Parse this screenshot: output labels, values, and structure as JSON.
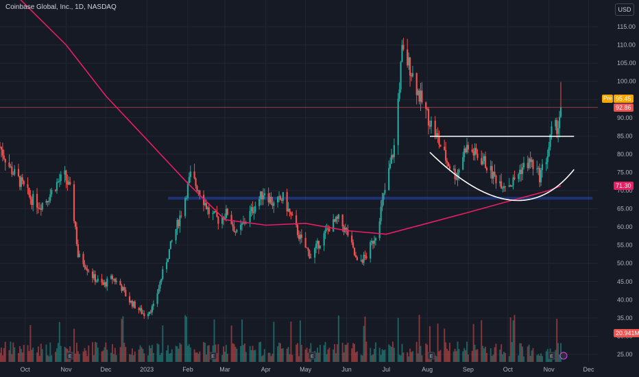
{
  "header": {
    "title": "Coinbase Global, Inc., 1D, NASDAQ",
    "currency": "USD"
  },
  "price_tags": {
    "pre_label": "Pre",
    "pre_value": "95.45",
    "last_value": "92.86",
    "ma_value": "71.30",
    "volume_value": "20.941M"
  },
  "colors": {
    "background": "#161a25",
    "up": "#26a69a",
    "down": "#ef5350",
    "ma": "#e91e63",
    "zone": "#2962ff",
    "pre": "#f7a600"
  },
  "icons": [
    "earnings-icon",
    "dividend-icon"
  ],
  "chart_data": {
    "type": "candlestick",
    "title": "Coinbase Global, Inc., 1D, NASDAQ",
    "y_ticks": [
      "115.00",
      "110.00",
      "105.00",
      "100.00",
      "95.00",
      "90.00",
      "85.00",
      "80.00",
      "75.00",
      "70.00",
      "65.00",
      "60.00",
      "55.00",
      "50.00",
      "45.00",
      "40.00",
      "35.00",
      "30.00",
      "25.00"
    ],
    "x_ticks": [
      "Oct",
      "Nov",
      "Dec",
      "2023",
      "Feb",
      "Mar",
      "Apr",
      "May",
      "Jun",
      "Jul",
      "Aug",
      "Sep",
      "Oct",
      "Nov",
      "Dec"
    ],
    "ylim": [
      22,
      119
    ],
    "x_range": [
      "2022-09-12",
      "2023-12-08"
    ],
    "grid": true,
    "last_price": 92.86,
    "pre_market_price": 95.45,
    "moving_average_last": 71.3,
    "volume_last": "20.941M",
    "price_path": [
      [
        "2022-09-12",
        82
      ],
      [
        "2022-09-20",
        76
      ],
      [
        "2022-09-28",
        72
      ],
      [
        "2022-10-05",
        68
      ],
      [
        "2022-10-12",
        66
      ],
      [
        "2022-10-18",
        68
      ],
      [
        "2022-10-25",
        72
      ],
      [
        "2022-10-31",
        74
      ],
      [
        "2022-11-04",
        70
      ],
      [
        "2022-11-08",
        60
      ],
      [
        "2022-11-10",
        52
      ],
      [
        "2022-11-15",
        50
      ],
      [
        "2022-11-22",
        46
      ],
      [
        "2022-11-29",
        44
      ],
      [
        "2022-12-06",
        46
      ],
      [
        "2022-12-12",
        44
      ],
      [
        "2022-12-18",
        40
      ],
      [
        "2022-12-24",
        38
      ],
      [
        "2022-12-30",
        36
      ],
      [
        "2023-01-06",
        38
      ],
      [
        "2023-01-12",
        46
      ],
      [
        "2023-01-20",
        56
      ],
      [
        "2023-01-27",
        64
      ],
      [
        "2023-02-03",
        74
      ],
      [
        "2023-02-10",
        70
      ],
      [
        "2023-02-17",
        64
      ],
      [
        "2023-02-24",
        62
      ],
      [
        "2023-03-03",
        64
      ],
      [
        "2023-03-10",
        58
      ],
      [
        "2023-03-17",
        62
      ],
      [
        "2023-03-24",
        66
      ],
      [
        "2023-03-31",
        70
      ],
      [
        "2023-04-07",
        66
      ],
      [
        "2023-04-14",
        68
      ],
      [
        "2023-04-21",
        62
      ],
      [
        "2023-04-28",
        56
      ],
      [
        "2023-05-05",
        52
      ],
      [
        "2023-05-12",
        56
      ],
      [
        "2023-05-19",
        60
      ],
      [
        "2023-05-26",
        62
      ],
      [
        "2023-06-02",
        58
      ],
      [
        "2023-06-09",
        50
      ],
      [
        "2023-06-16",
        52
      ],
      [
        "2023-06-23",
        58
      ],
      [
        "2023-06-30",
        70
      ],
      [
        "2023-07-07",
        82
      ],
      [
        "2023-07-13",
        108
      ],
      [
        "2023-07-19",
        104
      ],
      [
        "2023-07-26",
        96
      ],
      [
        "2023-08-02",
        90
      ],
      [
        "2023-08-09",
        84
      ],
      [
        "2023-08-16",
        78
      ],
      [
        "2023-08-23",
        74
      ],
      [
        "2023-08-30",
        82
      ],
      [
        "2023-09-06",
        80
      ],
      [
        "2023-09-13",
        78
      ],
      [
        "2023-09-20",
        74
      ],
      [
        "2023-09-27",
        72
      ],
      [
        "2023-10-04",
        72
      ],
      [
        "2023-10-11",
        76
      ],
      [
        "2023-10-18",
        78
      ],
      [
        "2023-10-25",
        74
      ],
      [
        "2023-10-31",
        80
      ],
      [
        "2023-11-03",
        86
      ],
      [
        "2023-11-08",
        88
      ],
      [
        "2023-11-10",
        92.86
      ]
    ],
    "moving_average": [
      [
        "2022-09-12",
        128
      ],
      [
        "2022-11-01",
        110
      ],
      [
        "2022-12-01",
        96
      ],
      [
        "2023-01-01",
        84
      ],
      [
        "2023-02-01",
        72
      ],
      [
        "2023-03-01",
        62
      ],
      [
        "2023-04-01",
        60.5
      ],
      [
        "2023-05-01",
        61
      ],
      [
        "2023-06-01",
        59
      ],
      [
        "2023-07-01",
        58
      ],
      [
        "2023-08-01",
        61
      ],
      [
        "2023-09-01",
        64
      ],
      [
        "2023-10-01",
        67
      ],
      [
        "2023-11-01",
        70
      ],
      [
        "2023-11-10",
        71.3
      ]
    ],
    "annotations": [
      {
        "type": "horizontal-line",
        "y": 84.9,
        "x_start": "2023-08-03",
        "x_end": "2023-11-20"
      },
      {
        "type": "arc",
        "x_start": "2023-08-03",
        "x_mid": "2023-10-09",
        "x_end": "2023-11-20",
        "y_ends": [
          80.5,
          75.8
        ],
        "y_low": 67.4
      },
      {
        "type": "zone",
        "y_range": [
          67.5,
          68.3
        ],
        "x_start": "2023-01-17",
        "x_end": "2023-12-04"
      }
    ]
  }
}
